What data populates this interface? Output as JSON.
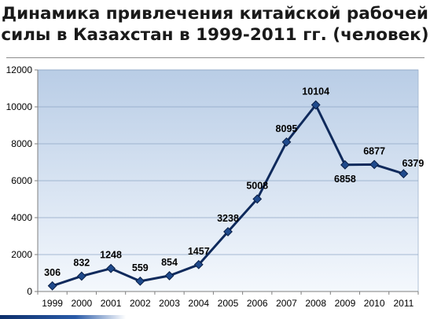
{
  "title": {
    "line1": "Динамика привлечения китайской рабочей",
    "line2": "силы в Казахстан  в 1999-2011 гг. (человек)"
  },
  "chart_data": {
    "type": "line",
    "title": "Динамика привлечения китайской рабочей силы в Казахстан  в 1999-2011 гг. (человек)",
    "categories": [
      "1999",
      "2000",
      "2001",
      "2002",
      "2003",
      "2004",
      "2005",
      "2006",
      "2007",
      "2008",
      "2009",
      "2010",
      "2011"
    ],
    "values": [
      306,
      832,
      1248,
      559,
      854,
      1457,
      3238,
      5008,
      8095,
      10104,
      6858,
      6877,
      6379
    ],
    "ylim": [
      0,
      12000
    ],
    "yticks": [
      0,
      2000,
      4000,
      6000,
      8000,
      10000,
      12000
    ],
    "grid": true,
    "xlabel": "",
    "ylabel": "",
    "colors": {
      "line": "#0f2a5c",
      "marker": "#1f4a8c",
      "plot_top": "#b9cde6",
      "plot_bottom": "#f4f8fd",
      "grid": "#8ea6c4"
    }
  }
}
